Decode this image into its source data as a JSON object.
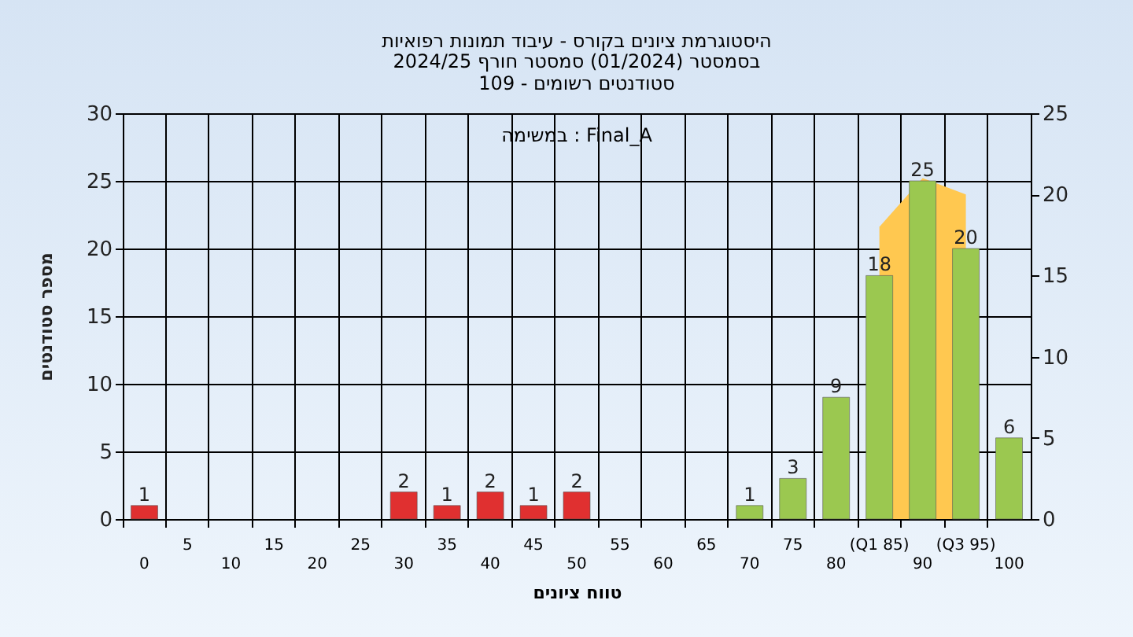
{
  "chart_data": {
    "type": "bar",
    "title": "היסטוגרמת ציונים בקורס - עיבוד תמונות רפואיות",
    "subtitle": "בסמסטר  (01/2024)  סמסטר חורף 2024/25\nסטודנטים רשומים - 109",
    "xlabel": "טווח ציונים",
    "ylabel": "מספר סטודנטים",
    "categories": [
      "0",
      "5",
      "10",
      "15",
      "20",
      "25",
      "30",
      "35",
      "40",
      "45",
      "50",
      "55",
      "60",
      "65",
      "70",
      "75",
      "80",
      "(Q1 85)",
      "90",
      "(Q3 95)",
      "100"
    ],
    "series": [
      {
        "type": "area",
        "axis": "y2",
        "color": "#ffc850",
        "values": [
          null,
          null,
          null,
          null,
          null,
          null,
          null,
          null,
          null,
          null,
          null,
          null,
          null,
          null,
          null,
          null,
          null,
          18,
          21,
          20,
          null
        ],
        "value_labels": [
          null,
          null,
          null,
          null,
          null,
          null,
          null,
          null,
          null,
          null,
          null,
          null,
          null,
          null,
          null,
          null,
          null,
          null,
          null,
          null,
          null
        ]
      },
      {
        "type": "bar",
        "colors": [
          "#e03030",
          "#e03030",
          "#e03030",
          "#e03030",
          "#e03030",
          "#e03030",
          "#e03030",
          "#e03030",
          "#e03030",
          "#e03030",
          "#e03030",
          "#e03030",
          "#e03030",
          "#e03030",
          "#9bc850",
          "#9bc850",
          "#9bc850",
          "#9bc850",
          "#9bc850",
          "#9bc850",
          "#9bc850"
        ],
        "values": [
          1,
          null,
          null,
          null,
          null,
          null,
          2,
          1,
          2,
          1,
          2,
          null,
          null,
          null,
          1,
          3,
          9,
          18,
          25,
          20,
          6
        ]
      }
    ],
    "ylim": [
      0,
      30
    ],
    "yticks": [
      0,
      5,
      10,
      15,
      20,
      25,
      30
    ],
    "y2lim": [
      0,
      25
    ],
    "y2ticks": [
      0,
      5,
      10,
      15,
      20,
      25
    ],
    "grid": true,
    "data_labels": true,
    "annotations": [
      "במשימה : Final_A"
    ]
  }
}
